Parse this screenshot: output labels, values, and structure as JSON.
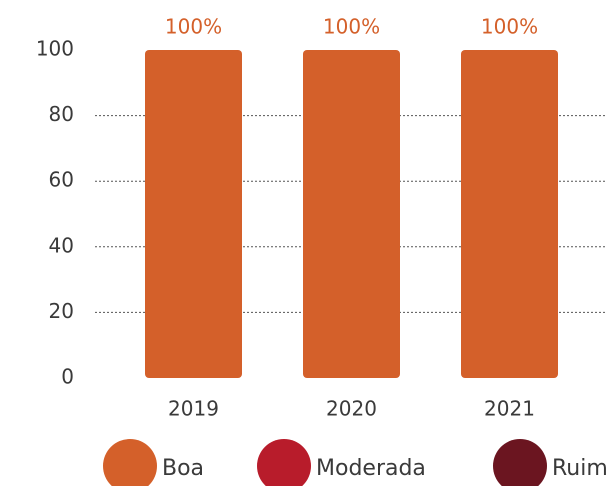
{
  "chart_data": {
    "type": "stacked_bar",
    "categories": [
      "2019",
      "2020",
      "2021"
    ],
    "series": [
      {
        "name": "Boa",
        "color": "#d4602a",
        "values": [
          100,
          100,
          100
        ],
        "value_labels": [
          "100%",
          "100%",
          "100%"
        ]
      },
      {
        "name": "Moderada",
        "color": "#b81c2b",
        "values": [
          0,
          0,
          0
        ]
      },
      {
        "name": "Ruim",
        "color": "#6b1520",
        "values": [
          0,
          0,
          0
        ]
      }
    ],
    "ylim": [
      0,
      100
    ],
    "yticks": [
      0,
      20,
      40,
      60,
      80,
      100
    ],
    "grid": true
  }
}
